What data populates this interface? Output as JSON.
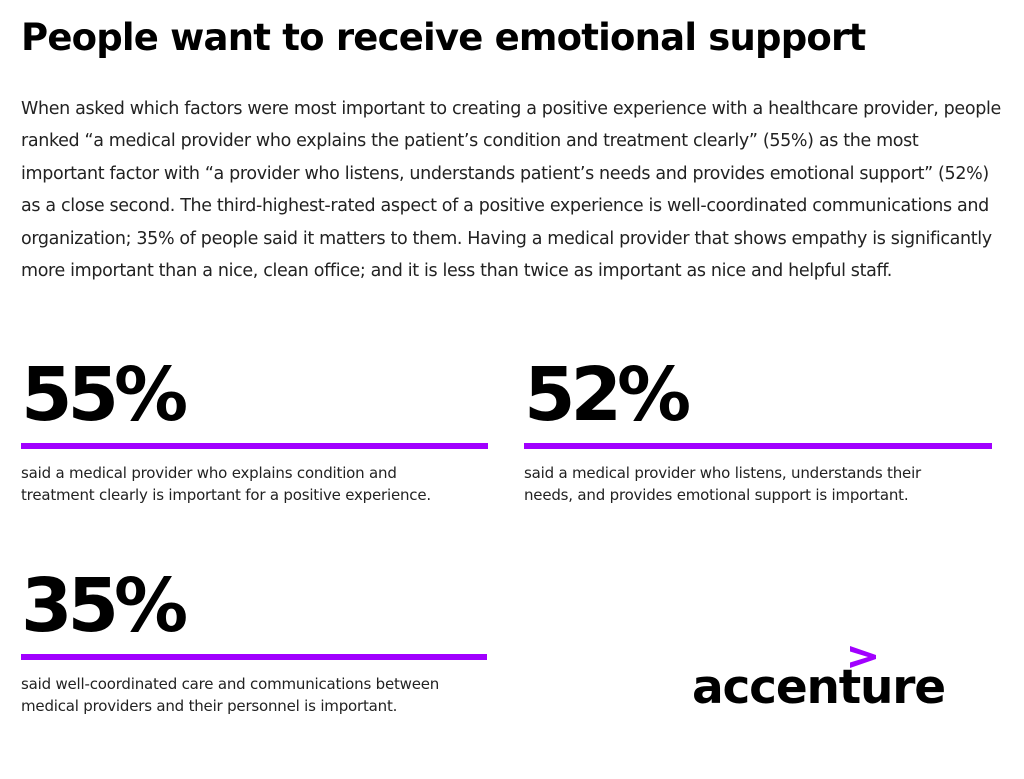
{
  "header": {
    "title": "People want to receive emotional support"
  },
  "intro": {
    "text": "When asked which factors were most important to creating a positive experience with a healthcare provider, people ranked “a medical provider who explains the patient’s condition and treatment clearly” (55%) as the most important factor with “a provider who listens, understands patient’s needs and provides emotional support” (52%) as a close second. The third-highest-rated aspect of a positive experience is well-coordinated communications and organization; 35% of people said it matters to them. Having a medical provider that shows empathy is significantly more important than a nice, clean office; and it is less than twice as important as nice and helpful staff."
  },
  "stats": [
    {
      "value": "55%",
      "description": "said a medical provider who explains condition and treatment clearly is important for a positive experience."
    },
    {
      "value": "52%",
      "description": "said a medical provider who listens, understands their needs, and provides emotional support is important."
    },
    {
      "value": "35%",
      "description": "said well-coordinated care and communications between medical providers and their personnel is important."
    }
  ],
  "logo": {
    "text": "accenture",
    "mark_icon": "greater-than-chevron-icon"
  },
  "colors": {
    "accent": "#a100ff",
    "text": "#000000",
    "background": "#ffffff"
  }
}
